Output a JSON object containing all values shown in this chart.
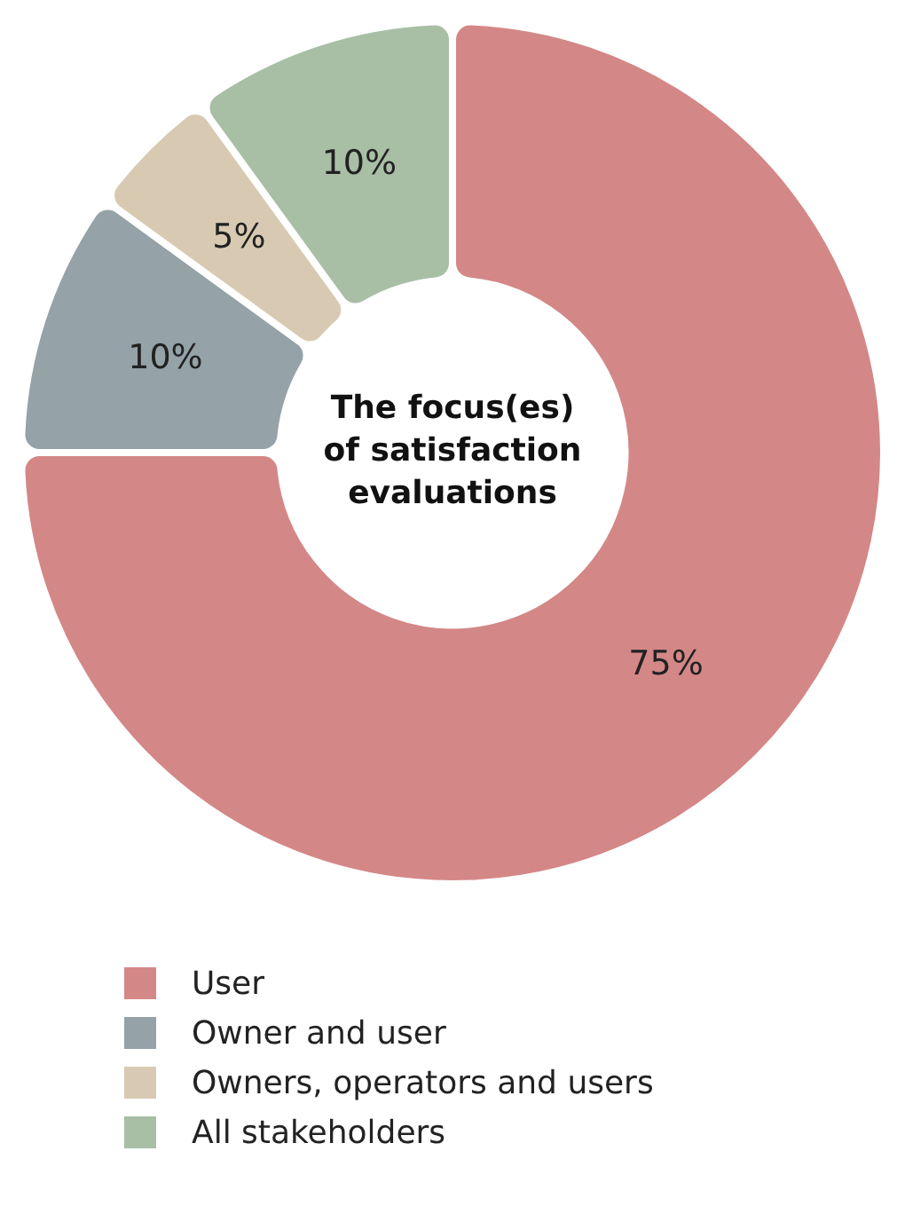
{
  "chart_data": {
    "type": "donut",
    "title": "The focus(es) of satisfaction evaluations",
    "categories": [
      "User",
      "Owner and user",
      "Owners, operators and users",
      "All stakeholders"
    ],
    "values": [
      75,
      10,
      5,
      10
    ],
    "colors": [
      "#d48787",
      "#95a2a8",
      "#d8cab2",
      "#a8bfa6"
    ],
    "value_labels": [
      "75%",
      "10%",
      "5%",
      "10%"
    ],
    "legend": "bottom"
  }
}
